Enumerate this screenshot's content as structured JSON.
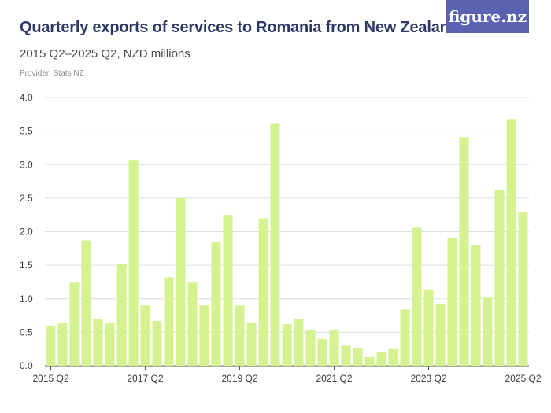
{
  "header": {
    "title": "Quarterly exports of services to Romania from New Zealand",
    "subtitle": "2015 Q2–2025 Q2, NZD millions",
    "provider": "Provider: Stats NZ",
    "logo_text": "figure.nz"
  },
  "colors": {
    "bar": "#d5f291",
    "grid": "#dddddd",
    "logo_bg": "#5c62b2",
    "title": "#2f3a66"
  },
  "chart_data": {
    "type": "bar",
    "title": "Quarterly exports of services to Romania from New Zealand",
    "subtitle": "2015 Q2–2025 Q2, NZD millions",
    "xlabel": "",
    "ylabel": "",
    "ylim": [
      0,
      4.0
    ],
    "yticks": [
      "0.0",
      "0.5",
      "1.0",
      "1.5",
      "2.0",
      "2.5",
      "3.0",
      "3.5",
      "4.0"
    ],
    "xtick_labels": [
      "2015 Q2",
      "2017 Q2",
      "2019 Q2",
      "2021 Q2",
      "2023 Q2",
      "2025 Q2"
    ],
    "xtick_indices": [
      0,
      8,
      16,
      24,
      32,
      40
    ],
    "grid": true,
    "categories": [
      "2015 Q2",
      "2015 Q3",
      "2015 Q4",
      "2016 Q1",
      "2016 Q2",
      "2016 Q3",
      "2016 Q4",
      "2017 Q1",
      "2017 Q2",
      "2017 Q3",
      "2017 Q4",
      "2018 Q1",
      "2018 Q2",
      "2018 Q3",
      "2018 Q4",
      "2019 Q1",
      "2019 Q2",
      "2019 Q3",
      "2019 Q4",
      "2020 Q1",
      "2020 Q2",
      "2020 Q3",
      "2020 Q4",
      "2021 Q1",
      "2021 Q2",
      "2021 Q3",
      "2021 Q4",
      "2022 Q1",
      "2022 Q2",
      "2022 Q3",
      "2022 Q4",
      "2023 Q1",
      "2023 Q2",
      "2023 Q3",
      "2023 Q4",
      "2024 Q1",
      "2024 Q2",
      "2024 Q3",
      "2024 Q4",
      "2025 Q1",
      "2025 Q2"
    ],
    "values": [
      0.6,
      0.64,
      1.24,
      1.87,
      0.7,
      0.64,
      1.52,
      3.06,
      0.9,
      0.67,
      1.32,
      2.5,
      1.24,
      0.9,
      1.84,
      2.25,
      0.9,
      0.64,
      2.2,
      3.62,
      0.62,
      0.7,
      0.54,
      0.4,
      0.54,
      0.3,
      0.27,
      0.13,
      0.2,
      0.25,
      0.84,
      2.06,
      1.13,
      0.92,
      1.91,
      3.41,
      1.8,
      1.02,
      2.62,
      3.68,
      2.3
    ]
  }
}
